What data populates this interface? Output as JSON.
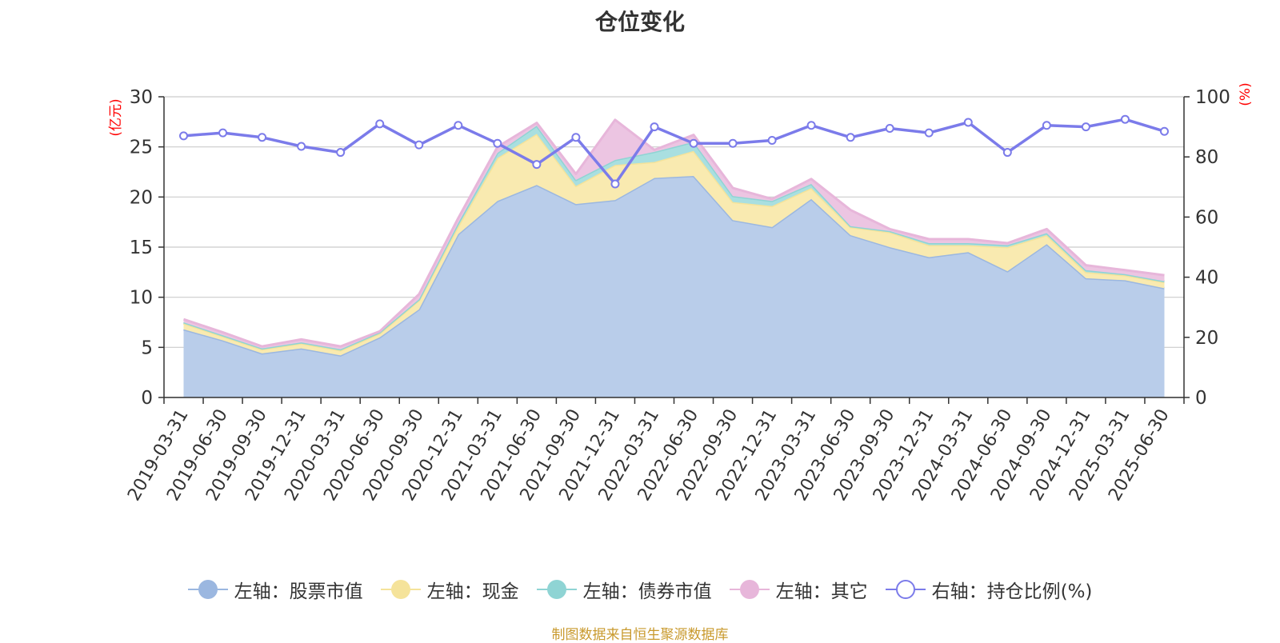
{
  "title": "仓位变化",
  "source": "制图数据来自恒生聚源数据库",
  "chart_data": {
    "type": "area",
    "x": [
      "2019-03-31",
      "2019-06-30",
      "2019-09-30",
      "2019-12-31",
      "2020-03-31",
      "2020-06-30",
      "2020-09-30",
      "2020-12-31",
      "2021-03-31",
      "2021-06-30",
      "2021-09-30",
      "2021-12-31",
      "2022-03-31",
      "2022-06-30",
      "2022-09-30",
      "2022-12-31",
      "2023-03-31",
      "2023-06-30",
      "2023-09-30",
      "2023-12-31",
      "2024-03-31",
      "2024-06-30",
      "2024-09-30",
      "2024-12-31",
      "2025-03-31",
      "2025-06-30"
    ],
    "left_axis": {
      "label": "(亿元)",
      "ylim": [
        0,
        30
      ],
      "ticks": [
        "0",
        "5",
        "10",
        "15",
        "20",
        "25",
        "30"
      ],
      "tick_values": [
        0,
        5,
        10,
        15,
        20,
        25,
        30
      ]
    },
    "right_axis": {
      "label": "(%)",
      "ylim": [
        0,
        100
      ],
      "ticks": [
        "0",
        "20",
        "40",
        "60",
        "80",
        "100"
      ],
      "tick_values": [
        0,
        20,
        40,
        60,
        80,
        100
      ]
    },
    "series": [
      {
        "name": "左轴：股票市值",
        "axis": "left",
        "stack": true,
        "color": "#9bb7e0",
        "fill": "#b9cdea",
        "values": [
          6.8,
          5.7,
          4.4,
          4.9,
          4.2,
          6.0,
          8.8,
          16.3,
          19.6,
          21.2,
          19.3,
          19.7,
          21.9,
          22.1,
          17.7,
          17.0,
          19.8,
          16.2,
          15.0,
          14.0,
          14.5,
          12.6,
          15.3,
          11.9,
          11.7,
          10.9
        ]
      },
      {
        "name": "左轴：现金",
        "axis": "left",
        "stack": true,
        "color": "#f5e39a",
        "fill": "#f9eab0",
        "values": [
          0.6,
          0.4,
          0.4,
          0.5,
          0.5,
          0.4,
          0.9,
          0.8,
          4.3,
          5.1,
          1.8,
          3.5,
          1.6,
          2.5,
          1.8,
          2.1,
          1.1,
          0.8,
          1.5,
          1.2,
          0.7,
          2.4,
          0.9,
          0.6,
          0.5,
          0.6
        ]
      },
      {
        "name": "左轴：债券市值",
        "axis": "left",
        "stack": true,
        "color": "#8fd4d4",
        "fill": "#a9dfe0",
        "values": [
          0.1,
          0.1,
          0.1,
          0.1,
          0.1,
          0.1,
          0.1,
          0.3,
          0.5,
          0.8,
          0.6,
          0.5,
          1.0,
          0.9,
          0.6,
          0.5,
          0.4,
          0.1,
          0.1,
          0.2,
          0.2,
          0.2,
          0.2,
          0.2,
          0.1,
          0.1
        ]
      },
      {
        "name": "左轴：其它",
        "axis": "left",
        "stack": true,
        "color": "#e7b6da",
        "fill": "#ecc5e2",
        "values": [
          0.3,
          0.3,
          0.2,
          0.3,
          0.3,
          0.1,
          0.5,
          0.5,
          0.6,
          0.3,
          0.6,
          4.0,
          0.2,
          0.7,
          0.8,
          0.2,
          0.5,
          1.6,
          0.2,
          0.4,
          0.4,
          0.2,
          0.4,
          0.5,
          0.4,
          0.6
        ]
      },
      {
        "name": "右轴：持仓比例(%)",
        "axis": "right",
        "stack": false,
        "color": "#7b7bea",
        "values": [
          87,
          88,
          86.5,
          83.5,
          81.5,
          91,
          84,
          90.5,
          84.5,
          77.5,
          86.5,
          71,
          90,
          84.5,
          84.5,
          85.5,
          90.5,
          86.5,
          89.5,
          88,
          91.5,
          81.5,
          90.5,
          90,
          92.5,
          88.5
        ]
      }
    ]
  }
}
